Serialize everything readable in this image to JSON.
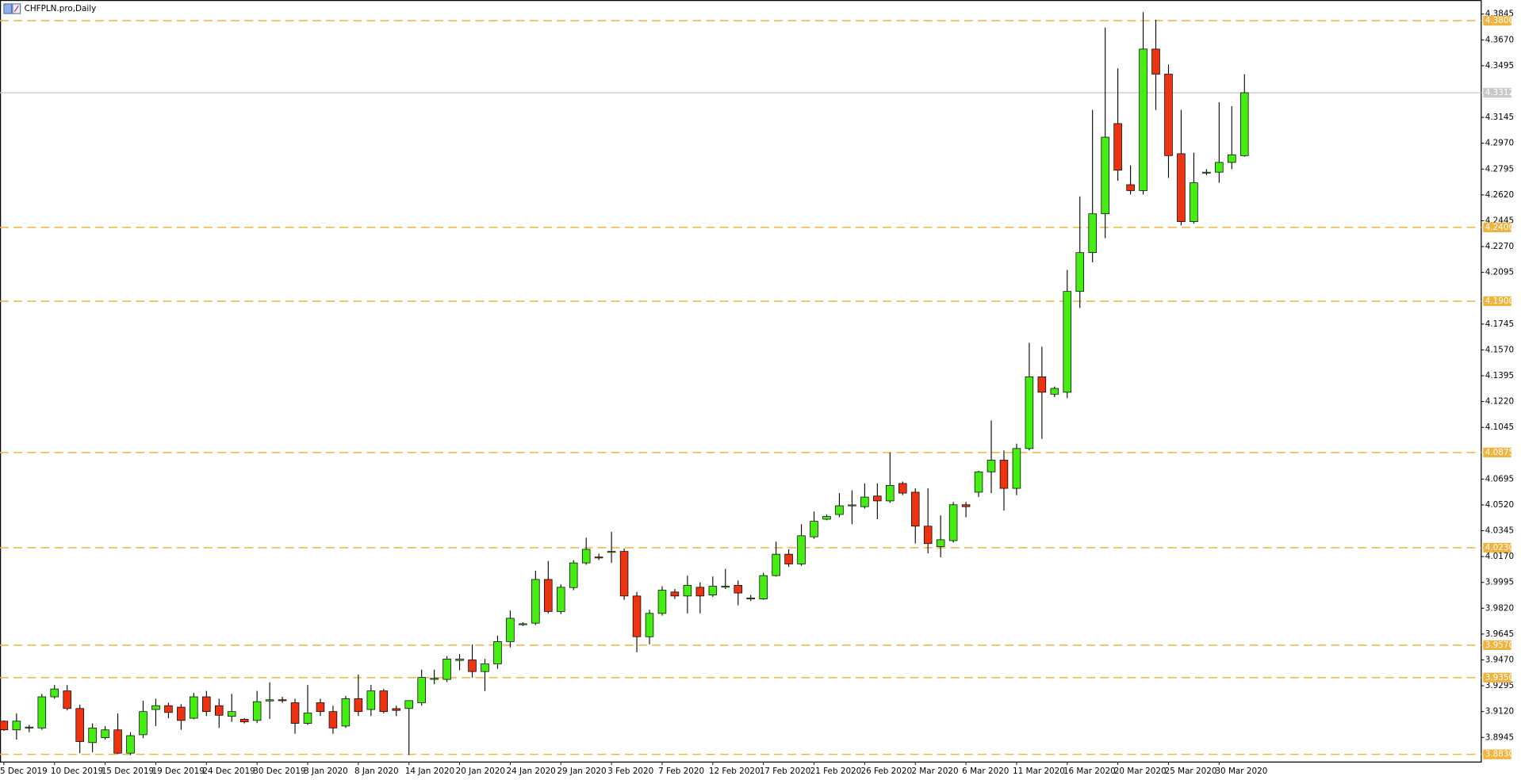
{
  "chart_data": {
    "type": "candlestick",
    "title": "CHFPLN.pro,Daily",
    "categories": [
      "5 Dec 2019",
      null,
      null,
      null,
      "10 Dec 2019",
      null,
      null,
      null,
      "15 Dec 2019",
      null,
      null,
      null,
      "19 Dec 2019",
      null,
      null,
      null,
      "24 Dec 2019",
      null,
      null,
      null,
      "30 Dec 2019",
      null,
      null,
      null,
      "3 Jan 2020",
      null,
      null,
      null,
      "8 Jan 2020",
      null,
      null,
      null,
      "14 Jan 2020",
      null,
      null,
      null,
      "20 Jan 2020",
      null,
      null,
      null,
      "24 Jan 2020",
      null,
      null,
      null,
      "29 Jan 2020",
      null,
      null,
      null,
      "3 Feb 2020",
      null,
      null,
      null,
      "7 Feb 2020",
      null,
      null,
      null,
      "12 Feb 2020",
      null,
      null,
      null,
      "17 Feb 2020",
      null,
      null,
      null,
      "21 Feb 2020",
      null,
      null,
      null,
      "26 Feb 2020",
      null,
      null,
      null,
      "2 Mar 2020",
      null,
      null,
      null,
      "6 Mar 2020",
      null,
      null,
      null,
      "11 Mar 2020",
      null,
      null,
      null,
      "16 Mar 2020",
      null,
      null,
      null,
      "20 Mar 2020",
      null,
      null,
      null,
      "25 Mar 2020",
      null,
      null,
      null,
      "30 Mar 2020",
      null,
      null
    ],
    "open": [
      3.9055,
      3.8996,
      3.9009,
      3.9009,
      3.922,
      3.926,
      3.9141,
      3.891,
      3.8943,
      3.8996,
      3.8838,
      3.8963,
      3.9134,
      3.916,
      3.915,
      3.9075,
      3.922,
      3.916,
      3.9088,
      3.9068,
      3.906,
      3.9192,
      3.92,
      3.918,
      3.904,
      3.918,
      3.912,
      3.9022,
      3.9207,
      3.9134,
      3.926,
      3.914,
      3.9141,
      3.918,
      3.9338,
      3.9338,
      3.9466,
      3.947,
      3.9391,
      3.9443,
      3.9594,
      3.9712,
      3.9719,
      4.0015,
      3.9798,
      3.996,
      4.0127,
      4.0167,
      4.02,
      4.0205,
      3.9903,
      3.9627,
      3.9785,
      3.993,
      3.9903,
      3.9962,
      3.991,
      3.9965,
      3.9975,
      3.9883,
      3.9883,
      4.0041,
      4.0186,
      4.012,
      4.0304,
      4.0423,
      4.0455,
      4.0514,
      4.0508,
      4.058,
      4.0547,
      4.0665,
      4.0606,
      4.0376,
      4.0238,
      4.0278,
      4.0521,
      4.0606,
      4.0744,
      4.0823,
      4.0632,
      4.0902,
      4.1388,
      4.127,
      4.1283,
      4.1966,
      4.2229,
      4.2492,
      4.3103,
      4.2689,
      4.2649,
      4.3608,
      4.3438,
      4.2899,
      4.2439,
      4.2774,
      4.2774,
      4.284,
      4.2886
    ],
    "high": [
      3.906,
      3.9108,
      3.903,
      3.924,
      3.93,
      3.93,
      3.9167,
      3.904,
      3.9022,
      3.9108,
      3.898,
      3.9193,
      3.9207,
      3.918,
      3.917,
      3.9246,
      3.926,
      3.9207,
      3.924,
      3.9075,
      3.926,
      3.9318,
      3.922,
      3.9207,
      3.93,
      3.9207,
      3.916,
      3.9226,
      3.9371,
      3.93,
      3.9273,
      3.916,
      3.9194,
      3.9404,
      3.9404,
      3.9496,
      3.951,
      3.9575,
      3.9476,
      3.9634,
      3.9805,
      3.9725,
      4.0074,
      4.014,
      3.9982,
      4.0146,
      4.0298,
      4.019,
      4.0337,
      4.0225,
      3.993,
      3.981,
      3.9969,
      3.995,
      4.004,
      3.9995,
      4.0035,
      4.0087,
      4.0008,
      3.991,
      4.0061,
      4.0271,
      4.0219,
      4.0389,
      4.0475,
      4.0455,
      4.06,
      4.0619,
      4.0665,
      4.0665,
      4.0875,
      4.0678,
      4.0632,
      4.0632,
      4.0449,
      4.054,
      4.054,
      4.0751,
      4.1092,
      4.0889,
      4.0935,
      4.1618,
      4.1592,
      4.1322,
      4.2111,
      4.261,
      4.3195,
      4.3753,
      4.3477,
      4.282,
      4.3858,
      4.3806,
      4.3503,
      4.3195,
      4.2906,
      4.2794,
      4.3247,
      4.3221,
      4.3438
    ],
    "low": [
      3.899,
      3.893,
      3.898,
      3.8996,
      3.9207,
      3.9128,
      3.8838,
      3.8845,
      3.893,
      3.8832,
      3.8825,
      3.894,
      3.9022,
      3.9075,
      3.8996,
      3.9068,
      3.909,
      3.9009,
      3.905,
      3.904,
      3.9042,
      3.907,
      3.918,
      3.897,
      3.903,
      3.909,
      3.897,
      3.9009,
      3.909,
      3.909,
      3.9108,
      3.909,
      3.8826,
      3.916,
      3.9305,
      3.932,
      3.94,
      3.935,
      3.9259,
      3.941,
      3.9555,
      3.97,
      3.9706,
      3.9785,
      3.978,
      3.9942,
      4.0114,
      4.0146,
      4.0127,
      3.9877,
      3.9522,
      3.9575,
      3.977,
      3.9883,
      3.9785,
      3.9785,
      3.9896,
      3.995,
      3.984,
      3.987,
      3.9877,
      4.0035,
      4.01,
      4.0107,
      4.0291,
      4.0416,
      4.0436,
      4.0389,
      4.0495,
      4.0423,
      4.0534,
      4.0586,
      4.0258,
      4.0192,
      4.0166,
      4.0265,
      4.0436,
      4.0573,
      4.06,
      4.0481,
      4.0586,
      4.0889,
      4.0967,
      4.125,
      4.1243,
      4.1854,
      4.2163,
      4.2327,
      4.2715,
      4.2623,
      4.2623,
      4.3195,
      4.2735,
      4.2413,
      4.2426,
      4.2754,
      4.2702,
      4.2794,
      4.2879
    ],
    "close": [
      3.8996,
      3.9055,
      3.9015,
      3.922,
      3.9273,
      3.9141,
      3.8917,
      3.9009,
      3.8996,
      3.8838,
      3.8957,
      3.912,
      3.916,
      3.9114,
      3.906,
      3.922,
      3.912,
      3.9095,
      3.912,
      3.905,
      3.9187,
      3.92,
      3.9195,
      3.904,
      3.911,
      3.912,
      3.9009,
      3.9207,
      3.912,
      3.926,
      3.912,
      3.9128,
      3.9194,
      3.9351,
      3.9345,
      3.9476,
      3.9476,
      3.9391,
      3.9443,
      3.9594,
      3.9752,
      3.9715,
      4.0015,
      3.9798,
      3.9962,
      4.0127,
      4.0219,
      4.0166,
      4.0205,
      3.9903,
      3.9627,
      3.9785,
      3.9942,
      3.9903,
      3.9975,
      3.9903,
      3.9969,
      3.9969,
      3.9923,
      3.989,
      4.0041,
      4.0186,
      4.012,
      4.0311,
      4.0409,
      4.0442,
      4.0514,
      4.052,
      4.0573,
      4.0547,
      4.0652,
      4.06,
      4.0376,
      4.0258,
      4.0284,
      4.0521,
      4.0508,
      4.0744,
      4.0823,
      4.0632,
      4.0902,
      4.1388,
      4.1283,
      4.1309,
      4.1966,
      4.2229,
      4.2492,
      4.3011,
      4.2787,
      4.2649,
      4.3608,
      4.3438,
      4.2886,
      4.2439,
      4.2702,
      4.2774,
      4.284,
      4.2892,
      4.3312
    ],
    "up_color": "#44ee11",
    "down_color": "#ee3311",
    "ylim": [
      3.8778,
      4.3937
    ],
    "yticks": [
      4.3845,
      {
        "value": 4.367,
        "label": "4.3670"
      },
      4.3495,
      4.3145,
      {
        "value": 4.297,
        "label": "4.2970"
      },
      4.2795,
      {
        "value": 4.262,
        "label": "4.2620"
      },
      4.2445,
      {
        "value": 4.227,
        "label": "4.2270"
      },
      4.2095,
      4.1745,
      {
        "value": 4.157,
        "label": "4.1570"
      },
      4.1395,
      {
        "value": 4.122,
        "label": "4.1220"
      },
      4.1045,
      4.0695,
      {
        "value": 4.052,
        "label": "4.0520"
      },
      4.0345,
      {
        "value": 4.017,
        "label": "4.0170"
      },
      3.9995,
      {
        "value": 3.982,
        "label": "3.9820"
      },
      3.9645,
      {
        "value": 3.947,
        "label": "3.9470"
      },
      3.9295,
      {
        "value": 3.912,
        "label": "3.9120"
      },
      3.8945
    ],
    "levels": [
      {
        "value": 4.38,
        "label": "4.3800"
      },
      {
        "value": 4.24,
        "label": "4.2400"
      },
      {
        "value": 4.19,
        "label": "4.1900"
      },
      4.0875,
      {
        "value": 4.023,
        "label": "4.0230"
      },
      {
        "value": 3.957,
        "label": "3.9570"
      },
      {
        "value": 3.935,
        "label": "3.9350"
      },
      {
        "value": 3.883,
        "label": "3.8830"
      }
    ],
    "level_color": "#f0b43c",
    "current_price": 4.3312,
    "current_price_color": "#c8c8c8",
    "grid": false
  }
}
